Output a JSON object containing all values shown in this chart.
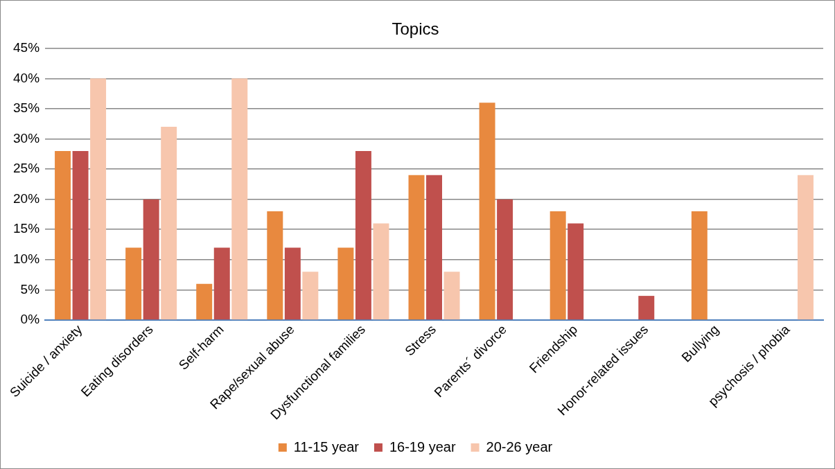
{
  "chart_data": {
    "type": "bar",
    "title": "Topics",
    "categories": [
      "Suicide / anxiety",
      "Eating disorders",
      "Self-harm",
      "Rape/sexual abuse",
      "Dysfunctional families",
      "Stress",
      "Parents´ divorce",
      "Friendship",
      "Honor-related issues",
      "Bullying",
      "psychosis / phobia"
    ],
    "series": [
      {
        "name": "11-15 year",
        "color": "#e8893f",
        "values": [
          28,
          12,
          6,
          18,
          12,
          24,
          36,
          18,
          0,
          18,
          0
        ]
      },
      {
        "name": "16-19 year",
        "color": "#c0504d",
        "values": [
          28,
          20,
          12,
          12,
          28,
          24,
          20,
          16,
          4,
          0,
          0
        ]
      },
      {
        "name": "20-26 year",
        "color": "#f7c6ad",
        "values": [
          40,
          32,
          40,
          8,
          16,
          8,
          0,
          0,
          0,
          0,
          24
        ]
      }
    ],
    "ylim": [
      0,
      45
    ],
    "yticks": [
      {
        "value": 0,
        "label": "0%"
      },
      {
        "value": 5,
        "label": "5%"
      },
      {
        "value": 10,
        "label": "10%"
      },
      {
        "value": 15,
        "label": "15%"
      },
      {
        "value": 20,
        "label": "20%"
      },
      {
        "value": 25,
        "label": "25%"
      },
      {
        "value": 30,
        "label": "30%"
      },
      {
        "value": 35,
        "label": "35%"
      },
      {
        "value": 40,
        "label": "40%"
      },
      {
        "value": 45,
        "label": "45%"
      }
    ],
    "grid": "y",
    "legend": "bottom"
  }
}
